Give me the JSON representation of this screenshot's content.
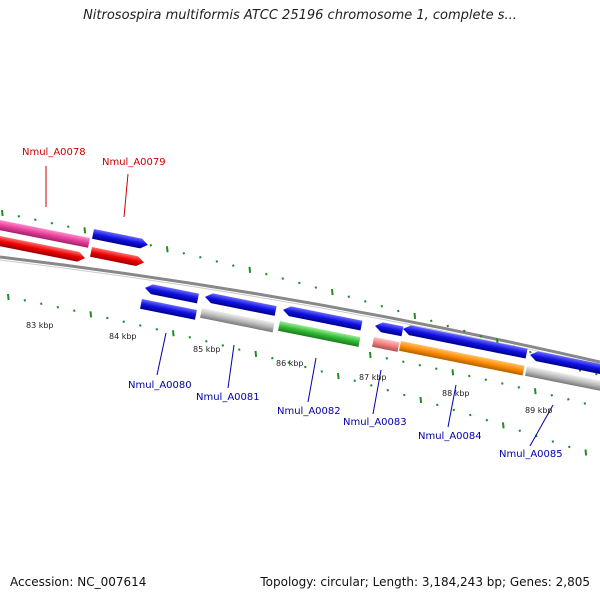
{
  "title": "Nitrosospira multiformis ATCC 25196 chromosome 1, complete s...",
  "footer": {
    "accession": "Accession: NC_007614",
    "summary": "Topology: circular; Length: 3,184,243 bp; Genes: 2,805"
  },
  "kbp_labels": [
    "83 kbp",
    "84 kbp",
    "85 kbp",
    "86 kbp",
    "87 kbp",
    "88 kbp",
    "89 kbp"
  ],
  "gene_labels": [
    {
      "id": "Nmul_A0078",
      "strand": "forward"
    },
    {
      "id": "Nmul_A0079",
      "strand": "forward"
    },
    {
      "id": "Nmul_A0080",
      "strand": "reverse"
    },
    {
      "id": "Nmul_A0081",
      "strand": "reverse"
    },
    {
      "id": "Nmul_A0082",
      "strand": "reverse"
    },
    {
      "id": "Nmul_A0083",
      "strand": "reverse"
    },
    {
      "id": "Nmul_A0084",
      "strand": "reverse"
    },
    {
      "id": "Nmul_A0085",
      "strand": "reverse"
    }
  ],
  "colors": {
    "forward_label": "#cc0000",
    "reverse_label": "#0000aa",
    "backbone": "#888888",
    "tick": "#228b22",
    "pink": "#e8409a",
    "blue": "#1010e0",
    "red": "#ee0000",
    "gray": "#bbbbbb",
    "green": "#33bb33",
    "salmon": "#f08080",
    "orange": "#ff8c00"
  }
}
